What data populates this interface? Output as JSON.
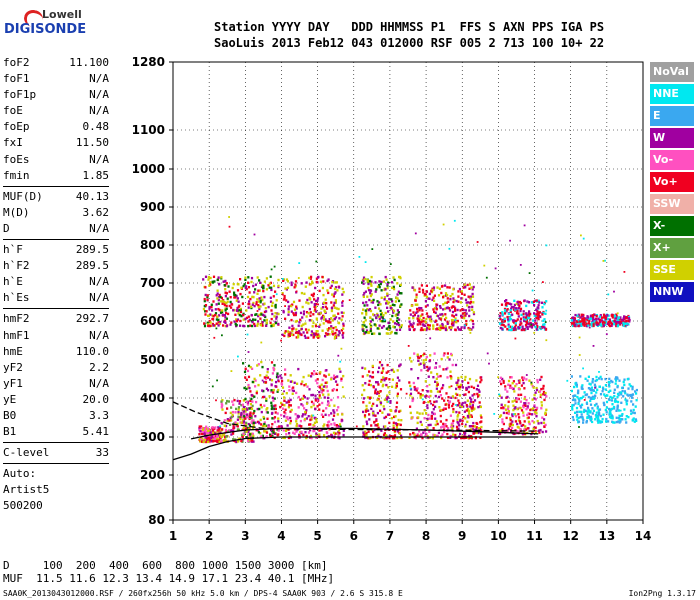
{
  "logo": {
    "line1": "Lowell",
    "line2": "DIGISONDE"
  },
  "header": {
    "line1": "Station YYYY DAY   DDD HHMMSS P1  FFS S AXN PPS IGA PS",
    "line2": "SaoLuis 2013 Feb12 043 012000 RSF 005 2 713 100 10+ 22"
  },
  "params": {
    "group1": [
      {
        "label": "foF2",
        "value": "11.100"
      },
      {
        "label": "foF1",
        "value": "N/A"
      },
      {
        "label": "foF1p",
        "value": "N/A"
      },
      {
        "label": "foE",
        "value": "N/A"
      },
      {
        "label": "foEp",
        "value": "0.48"
      },
      {
        "label": "fxI",
        "value": "11.50"
      },
      {
        "label": "foEs",
        "value": "N/A"
      },
      {
        "label": "fmin",
        "value": "1.85"
      }
    ],
    "group2": [
      {
        "label": "MUF(D)",
        "value": "40.13"
      },
      {
        "label": "M(D)",
        "value": "3.62"
      },
      {
        "label": "D",
        "value": "N/A"
      }
    ],
    "group3": [
      {
        "label": "h`F",
        "value": "289.5"
      },
      {
        "label": "h`F2",
        "value": "289.5"
      },
      {
        "label": "h`E",
        "value": "N/A"
      },
      {
        "label": "h`Es",
        "value": "N/A"
      }
    ],
    "group4": [
      {
        "label": "hmF2",
        "value": "292.7"
      },
      {
        "label": "hmF1",
        "value": "N/A"
      },
      {
        "label": "hmE",
        "value": "110.0"
      },
      {
        "label": "yF2",
        "value": "2.2"
      },
      {
        "label": "yF1",
        "value": "N/A"
      },
      {
        "label": "yE",
        "value": "20.0"
      },
      {
        "label": "B0",
        "value": "3.3"
      },
      {
        "label": "B1",
        "value": "5.41"
      }
    ],
    "group5": [
      {
        "label": "C-level",
        "value": "33"
      }
    ],
    "auto_lines": [
      "Auto:",
      "Artist5",
      "500200"
    ]
  },
  "legend": [
    {
      "label": "NoVal",
      "color": "#a0a0a0"
    },
    {
      "label": "NNE",
      "color": "#00e8f0"
    },
    {
      "label": "E",
      "color": "#3aa8f0"
    },
    {
      "label": "W",
      "color": "#a000a0"
    },
    {
      "label": "Vo-",
      "color": "#ff50c0"
    },
    {
      "label": "Vo+",
      "color": "#f00020"
    },
    {
      "label": "SSW",
      "color": "#f0b0a8"
    },
    {
      "label": "X-",
      "color": "#007000"
    },
    {
      "label": "X+",
      "color": "#60a040"
    },
    {
      "label": "SSE",
      "color": "#d0d000"
    },
    {
      "label": "NNW",
      "color": "#1010c0"
    }
  ],
  "bottom": {
    "d_line": "D     100  200  400  600  800 1000 1500 3000 [km]",
    "muf_line": "MUF  11.5 11.6 12.3 13.4 14.9 17.1 23.4 40.1 [MHz]"
  },
  "footer": "SAA0K_2013043012000.RSF / 260fx256h 50 kHz 5.0 km / DPS-4 SAA0K 903 / 2.6 S 315.8 E",
  "version": "Ion2Png 1.3.17",
  "chart_data": {
    "type": "scatter",
    "title": "",
    "xlabel": "",
    "ylabel": "",
    "xlim": [
      1,
      14
    ],
    "ylim": [
      80,
      1280
    ],
    "x_ticks": [
      "1",
      "2",
      "3",
      "4",
      "5",
      "6",
      "7",
      "8",
      "9",
      "10",
      "11",
      "12",
      "13",
      "14"
    ],
    "y_ticks": [
      "80",
      "200",
      "300",
      "400",
      "500",
      "600",
      "700",
      "800",
      "900",
      "1000",
      "1100",
      "1280"
    ],
    "grid": true,
    "legend_placement": "right",
    "clusters": [
      {
        "name": "",
        "x_range": [
          1.7,
          2.3
        ],
        "y_range": [
          290,
          330
        ],
        "colors": [
          "#f00020",
          "#a000a0",
          "#d0d000",
          "#ff50c0"
        ]
      },
      {
        "name": "",
        "x_range": [
          2.3,
          3.2
        ],
        "y_range": [
          290,
          400
        ],
        "colors": [
          "#a000a0",
          "#f00020",
          "#d0d000",
          "#ff50c0",
          "#60a040"
        ]
      },
      {
        "name": "",
        "x_range": [
          2.9,
          3.9
        ],
        "y_range": [
          300,
          500
        ],
        "colors": [
          "#a000a0",
          "#d0d000",
          "#ff50c0",
          "#f00020",
          "#007000"
        ]
      },
      {
        "name": "",
        "x_range": [
          3.9,
          5.7
        ],
        "y_range": [
          300,
          480
        ],
        "colors": [
          "#a000a0",
          "#d0d000",
          "#f00020",
          "#ff50c0"
        ]
      },
      {
        "name": "",
        "x_range": [
          6.2,
          7.3
        ],
        "y_range": [
          300,
          500
        ],
        "colors": [
          "#d0d000",
          "#a000a0",
          "#f00020"
        ]
      },
      {
        "name": "",
        "x_range": [
          7.5,
          8.8
        ],
        "y_range": [
          300,
          520
        ],
        "colors": [
          "#a000a0",
          "#d0d000",
          "#f00020",
          "#ff50c0"
        ]
      },
      {
        "name": "",
        "x_range": [
          8.8,
          9.5
        ],
        "y_range": [
          300,
          460
        ],
        "colors": [
          "#d0d000",
          "#a000a0",
          "#f00020"
        ]
      },
      {
        "name": "",
        "x_range": [
          10.0,
          11.3
        ],
        "y_range": [
          310,
          460
        ],
        "colors": [
          "#a000a0",
          "#d0d000",
          "#f00020",
          "#ff50c0"
        ]
      },
      {
        "name": "",
        "x_range": [
          12.0,
          13.8
        ],
        "y_range": [
          340,
          460
        ],
        "colors": [
          "#00e8f0",
          "#3aa8f0"
        ]
      },
      {
        "name": "",
        "x_range": [
          1.8,
          3.9
        ],
        "y_range": [
          590,
          720
        ],
        "colors": [
          "#d0d000",
          "#a000a0",
          "#f00020",
          "#007000"
        ]
      },
      {
        "name": "",
        "x_range": [
          4.0,
          5.7
        ],
        "y_range": [
          560,
          720
        ],
        "colors": [
          "#d0d000",
          "#a000a0",
          "#f00020"
        ]
      },
      {
        "name": "",
        "x_range": [
          6.2,
          7.3
        ],
        "y_range": [
          570,
          720
        ],
        "colors": [
          "#d0d000",
          "#a000a0",
          "#007000"
        ]
      },
      {
        "name": "",
        "x_range": [
          7.5,
          9.3
        ],
        "y_range": [
          580,
          700
        ],
        "colors": [
          "#a000a0",
          "#d0d000",
          "#f00020"
        ]
      },
      {
        "name": "",
        "x_range": [
          10.0,
          11.3
        ],
        "y_range": [
          580,
          660
        ],
        "colors": [
          "#00e8f0",
          "#a000a0",
          "#f00020"
        ]
      },
      {
        "name": "",
        "x_range": [
          12.0,
          13.6
        ],
        "y_range": [
          590,
          620
        ],
        "colors": [
          "#f00020",
          "#a000a0",
          "#00e8f0"
        ]
      }
    ],
    "lines": [
      {
        "name": "",
        "color": "#000000",
        "dash": false,
        "points": [
          [
            1,
            240
          ],
          [
            1.5,
            255
          ],
          [
            2,
            275
          ],
          [
            2.5,
            288
          ],
          [
            3,
            296
          ],
          [
            4,
            300
          ],
          [
            5,
            300
          ],
          [
            6,
            300
          ],
          [
            8,
            300
          ],
          [
            10,
            300
          ],
          [
            11.1,
            300
          ]
        ]
      },
      {
        "name": "",
        "color": "#000000",
        "dash": false,
        "points": [
          [
            1.5,
            295
          ],
          [
            2,
            305
          ],
          [
            3,
            318
          ],
          [
            4,
            322
          ],
          [
            6,
            322
          ],
          [
            8,
            318
          ],
          [
            10,
            312
          ],
          [
            11.1,
            308
          ]
        ]
      },
      {
        "name": "",
        "color": "#000000",
        "dash": true,
        "points": [
          [
            1,
            390
          ],
          [
            1.6,
            365
          ],
          [
            2.5,
            335
          ],
          [
            3.5,
            322
          ],
          [
            5,
            320
          ],
          [
            8,
            318
          ],
          [
            11.1,
            315
          ]
        ]
      }
    ]
  }
}
